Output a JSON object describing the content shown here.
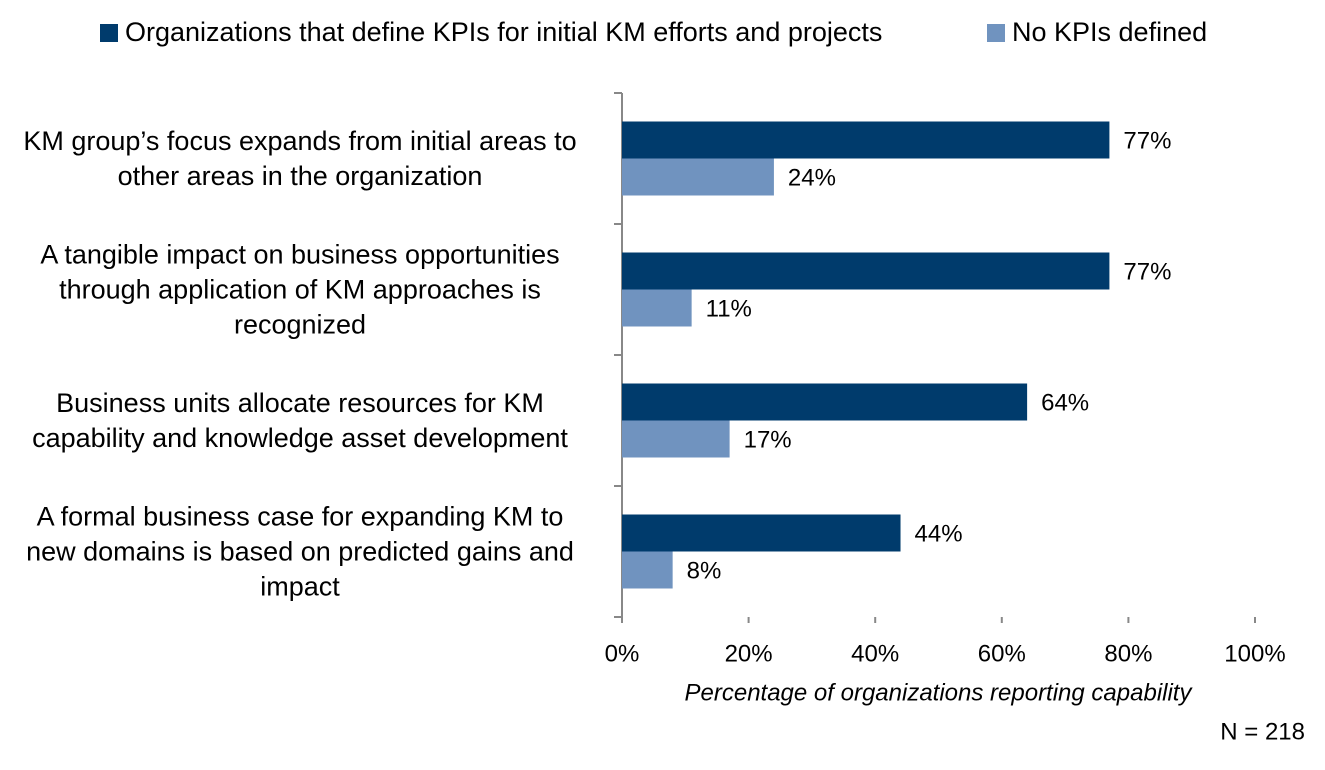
{
  "chart_data": {
    "type": "hbar",
    "categories": [
      "KM group’s focus expands from initial areas to\nother areas in the organization",
      "A tangible impact on business opportunities\nthrough application of KM approaches is\nrecognized",
      "Business units allocate resources for KM\ncapability and knowledge asset development",
      "A formal business case for expanding KM to\nnew domains is based on predicted gains and\nimpact"
    ],
    "series": [
      {
        "name": "Organizations that define KPIs for initial KM efforts and projects",
        "color": "#003b6c",
        "values": [
          77,
          77,
          64,
          44
        ],
        "value_labels": [
          "77%",
          "77%",
          "64%",
          "44%"
        ]
      },
      {
        "name": "No KPIs defined",
        "color": "#7093bf",
        "values": [
          24,
          11,
          17,
          8
        ],
        "value_labels": [
          "24%",
          "11%",
          "17%",
          "8%"
        ]
      }
    ],
    "xlim": [
      0,
      100
    ],
    "xticks": [
      {
        "value": 0,
        "label": "0%"
      },
      {
        "value": 20,
        "label": "20%"
      },
      {
        "value": 40,
        "label": "40%"
      },
      {
        "value": 60,
        "label": "60%"
      },
      {
        "value": 80,
        "label": "80%"
      },
      {
        "value": 100,
        "label": "100%"
      }
    ],
    "x_label": "Percentage of organizations reporting capability",
    "annotation": "N = 218",
    "legend": "top"
  }
}
